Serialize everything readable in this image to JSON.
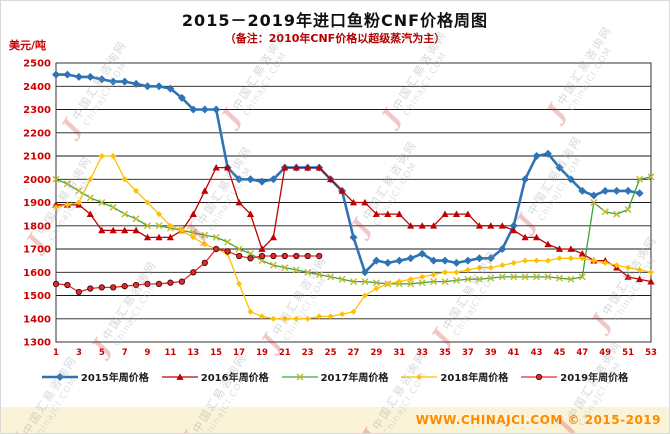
{
  "header": {
    "title": "2015－2019年进口鱼粉CNF价格周图",
    "subtitle": "（备注：2010年CNF价格以超级蒸汽为主）"
  },
  "axis": {
    "unit_label": "美元/吨"
  },
  "footer": {
    "text": "WWW.CHINAJCI.COM © 2015-2019"
  },
  "watermark": {
    "cn": "中国汇易咨询网",
    "en": "ChinaJCI.COM",
    "logo": "J"
  },
  "chart_data": {
    "type": "line",
    "title": "2015－2019年进口鱼粉CNF价格周图",
    "subtitle": "（备注：2010年CNF价格以超级蒸汽为主）",
    "xlabel": "",
    "ylabel": "美元/吨",
    "ylim": [
      1300,
      2500
    ],
    "y_ticks": [
      2500,
      2400,
      2300,
      2200,
      2100,
      2000,
      1900,
      1800,
      1700,
      1600,
      1500,
      1400,
      1300
    ],
    "x_ticks": [
      1,
      3,
      5,
      7,
      9,
      11,
      13,
      15,
      17,
      19,
      21,
      23,
      25,
      27,
      29,
      31,
      33,
      35,
      37,
      39,
      41,
      43,
      45,
      47,
      49,
      51,
      53
    ],
    "x_range": [
      1,
      53
    ],
    "grid": true,
    "legend_position": "bottom",
    "series": [
      {
        "name": "2015年周价格",
        "color": "#2e74b5",
        "marker": "diamond",
        "line_width": 2.6,
        "values": [
          2450,
          2450,
          2440,
          2440,
          2430,
          2420,
          2420,
          2410,
          2400,
          2400,
          2390,
          2350,
          2300,
          2300,
          2300,
          2050,
          2000,
          2000,
          1990,
          2000,
          2050,
          2050,
          2050,
          2050,
          2000,
          1950,
          1750,
          1600,
          1650,
          1640,
          1650,
          1660,
          1680,
          1650,
          1650,
          1640,
          1650,
          1660,
          1660,
          1700,
          1800,
          2000,
          2100,
          2110,
          2050,
          2000,
          1950,
          1930,
          1950,
          1950,
          1950,
          1940,
          null
        ]
      },
      {
        "name": "2016年周价格",
        "color": "#c00000",
        "marker": "triangle",
        "line_width": 1.3,
        "values": [
          1890,
          1890,
          1890,
          1850,
          1780,
          1780,
          1780,
          1780,
          1750,
          1750,
          1750,
          1780,
          1850,
          1950,
          2050,
          2050,
          1900,
          1850,
          1700,
          1750,
          2050,
          2050,
          2050,
          2050,
          2000,
          1950,
          1900,
          1900,
          1850,
          1850,
          1850,
          1800,
          1800,
          1800,
          1850,
          1850,
          1850,
          1800,
          1800,
          1800,
          1780,
          1750,
          1750,
          1720,
          1700,
          1700,
          1680,
          1650,
          1650,
          1620,
          1580,
          1570,
          1560
        ]
      },
      {
        "name": "2017年周价格",
        "color": "#3aa63a",
        "marker": "x",
        "marker_color": "#c2b82d",
        "line_width": 1.3,
        "values": [
          2000,
          1980,
          1950,
          1920,
          1900,
          1880,
          1850,
          1830,
          1800,
          1800,
          1790,
          1780,
          1770,
          1760,
          1750,
          1730,
          1700,
          1680,
          1650,
          1630,
          1620,
          1610,
          1600,
          1590,
          1580,
          1570,
          1560,
          1560,
          1555,
          1550,
          1550,
          1550,
          1555,
          1560,
          1560,
          1565,
          1570,
          1570,
          1575,
          1580,
          1580,
          1580,
          1580,
          1580,
          1575,
          1570,
          1580,
          1900,
          1860,
          1850,
          1870,
          2000,
          2010
        ]
      },
      {
        "name": "2018年周价格",
        "color": "#ffc000",
        "marker": "diamond-small",
        "line_width": 1.3,
        "values": [
          1880,
          1890,
          1900,
          2000,
          2100,
          2100,
          2000,
          1950,
          1900,
          1850,
          1800,
          1780,
          1750,
          1720,
          1700,
          1680,
          1550,
          1430,
          1410,
          1400,
          1400,
          1400,
          1400,
          1410,
          1410,
          1420,
          1430,
          1500,
          1530,
          1550,
          1560,
          1570,
          1580,
          1590,
          1600,
          1600,
          1610,
          1620,
          1620,
          1630,
          1640,
          1650,
          1650,
          1650,
          1660,
          1660,
          1660,
          1650,
          1640,
          1630,
          1620,
          1610,
          1600
        ]
      },
      {
        "name": "2019年周价格",
        "color": "#e8262a",
        "marker": "circle",
        "marker_stroke": "#3a0c0c",
        "line_width": 1.3,
        "values": [
          1550,
          1545,
          1515,
          1530,
          1535,
          1535,
          1540,
          1545,
          1550,
          1550,
          1555,
          1560,
          1600,
          1640,
          1700,
          1690,
          1670,
          1660,
          1670,
          1670,
          1670,
          1670,
          1670,
          1670,
          null,
          null,
          null,
          null,
          null,
          null,
          null,
          null,
          null,
          null,
          null,
          null,
          null,
          null,
          null,
          null,
          null,
          null,
          null,
          null,
          null,
          null,
          null,
          null,
          null,
          null,
          null,
          null,
          null
        ]
      }
    ]
  }
}
